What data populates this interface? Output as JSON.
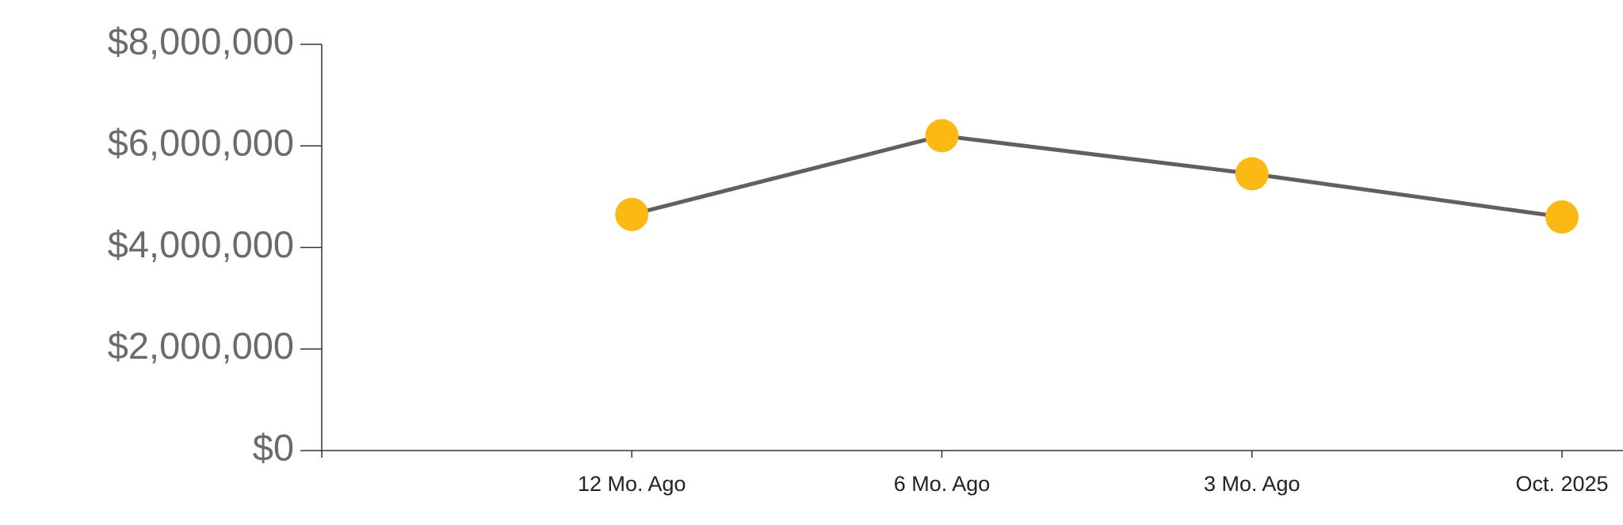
{
  "chart_data": {
    "type": "line",
    "categories": [
      "12 Mo. Ago",
      "6 Mo. Ago",
      "3 Mo. Ago",
      "Oct. 2025"
    ],
    "series": [
      {
        "values": [
          4650000,
          6200000,
          5450000,
          4600000
        ],
        "color": "#606060",
        "marker_color": "#FDB913"
      }
    ],
    "ylim": [
      0,
      8000000
    ],
    "yticks": [
      {
        "value": 0,
        "label": "$0"
      },
      {
        "value": 2000000,
        "label": "$2,000,000"
      },
      {
        "value": 4000000,
        "label": "$4,000,000"
      },
      {
        "value": 6000000,
        "label": "$6,000,000"
      },
      {
        "value": 8000000,
        "label": "$8,000,000"
      }
    ]
  }
}
